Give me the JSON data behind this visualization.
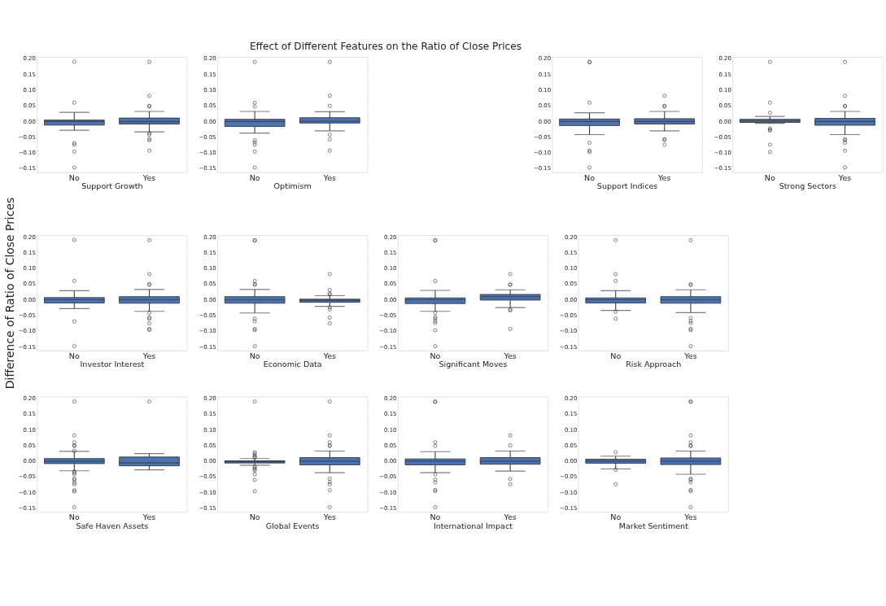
{
  "chart_data": [
    {
      "type": "box",
      "categories": [
        "No",
        "Yes"
      ],
      "xlabel": "Support Growth",
      "ylim": [
        -0.162,
        0.206
      ],
      "yticks": [
        {
          "value": -0.15,
          "label": "−0.15"
        },
        {
          "value": -0.1,
          "label": "−0.10"
        },
        {
          "value": -0.05,
          "label": "−0.05"
        },
        {
          "value": 0,
          "label": "0.00"
        },
        {
          "value": 0.05,
          "label": "0.05"
        },
        {
          "value": 0.1,
          "label": "0.10"
        },
        {
          "value": 0.15,
          "label": "0.15"
        },
        {
          "value": 0.2,
          "label": "0.20"
        }
      ],
      "grid": "y",
      "series": [
        {
          "color": "#4c72b0",
          "boxes": [
            {
              "low": -0.028,
              "q1": -0.0115,
              "median": 0.0,
              "q3": 0.0045,
              "high": 0.029,
              "outliers": [
                0.191,
                0.06,
                -0.069,
                -0.074,
                -0.096,
                -0.147
              ]
            },
            {
              "low": -0.033,
              "q1": -0.008,
              "median": 0.0,
              "q3": 0.011,
              "high": 0.032,
              "outliers": [
                0.19,
                0.082,
                0.05,
                0.048,
                -0.037,
                -0.042,
                -0.056,
                -0.06,
                -0.093
              ]
            }
          ]
        }
      ]
    },
    {
      "type": "box",
      "title": "Effect of Different Features on the Ratio of Close Prices",
      "categories": [
        "No",
        "Yes"
      ],
      "xlabel": "Optimism",
      "ylim": [
        -0.162,
        0.206
      ],
      "yticks": [
        {
          "value": -0.15,
          "label": "−0.15"
        },
        {
          "value": -0.1,
          "label": "−0.10"
        },
        {
          "value": -0.05,
          "label": "−0.05"
        },
        {
          "value": 0,
          "label": "0.00"
        },
        {
          "value": 0.05,
          "label": "0.05"
        },
        {
          "value": 0.1,
          "label": "0.10"
        },
        {
          "value": 0.15,
          "label": "0.15"
        },
        {
          "value": 0.2,
          "label": "0.20"
        }
      ],
      "grid": "y",
      "series": [
        {
          "color": "#4c72b0",
          "boxes": [
            {
              "low": -0.037,
              "q1": -0.016,
              "median": 0.0,
              "q3": 0.007,
              "high": 0.032,
              "outliers": [
                0.19,
                0.06,
                0.048,
                -0.06,
                -0.067,
                -0.074,
                -0.096,
                -0.147
              ]
            },
            {
              "low": -0.03,
              "q1": -0.005,
              "median": 0.001,
              "q3": 0.012,
              "high": 0.031,
              "outliers": [
                0.19,
                0.082,
                0.05,
                -0.042,
                -0.057,
                -0.093
              ]
            }
          ]
        }
      ]
    },
    {
      "type": "box",
      "categories": [
        "No",
        "Yes"
      ],
      "xlabel": "Support Indices",
      "ylim": [
        -0.162,
        0.206
      ],
      "yticks": [
        {
          "value": -0.15,
          "label": "−0.15"
        },
        {
          "value": -0.1,
          "label": "−0.10"
        },
        {
          "value": -0.05,
          "label": "−0.05"
        },
        {
          "value": 0,
          "label": "0.00"
        },
        {
          "value": 0.05,
          "label": "0.05"
        },
        {
          "value": 0.1,
          "label": "0.10"
        },
        {
          "value": 0.15,
          "label": "0.15"
        },
        {
          "value": 0.2,
          "label": "0.20"
        }
      ],
      "grid": "y",
      "series": [
        {
          "color": "#4c72b0",
          "boxes": [
            {
              "low": -0.042,
              "q1": -0.013,
              "median": 0.0,
              "q3": 0.008,
              "high": 0.028,
              "outliers": [
                0.19,
                0.189,
                0.06,
                -0.068,
                -0.093,
                -0.097,
                -0.147
              ]
            },
            {
              "low": -0.03,
              "q1": -0.008,
              "median": 0.0,
              "q3": 0.009,
              "high": 0.032,
              "outliers": [
                0.082,
                0.05,
                0.048,
                -0.056,
                -0.059,
                -0.074
              ]
            }
          ]
        }
      ]
    },
    {
      "type": "box",
      "categories": [
        "No",
        "Yes"
      ],
      "xlabel": "Strong Sectors",
      "ylim": [
        -0.162,
        0.206
      ],
      "yticks": [
        {
          "value": -0.15,
          "label": "−0.15"
        },
        {
          "value": -0.1,
          "label": "−0.10"
        },
        {
          "value": -0.05,
          "label": "−0.05"
        },
        {
          "value": 0,
          "label": "0.00"
        },
        {
          "value": 0.05,
          "label": "0.05"
        },
        {
          "value": 0.1,
          "label": "0.10"
        },
        {
          "value": 0.15,
          "label": "0.15"
        },
        {
          "value": 0.2,
          "label": "0.20"
        }
      ],
      "grid": "y",
      "series": [
        {
          "color": "#4c72b0",
          "boxes": [
            {
              "low": -0.006,
              "q1": -0.003,
              "median": 0.002,
              "q3": 0.007,
              "high": 0.016,
              "outliers": [
                0.19,
                0.06,
                0.028,
                -0.022,
                -0.026,
                -0.029,
                -0.074,
                -0.097
              ]
            },
            {
              "low": -0.042,
              "q1": -0.012,
              "median": 0.0,
              "q3": 0.01,
              "high": 0.032,
              "outliers": [
                0.19,
                0.082,
                0.05,
                0.048,
                -0.056,
                -0.06,
                -0.068,
                -0.093,
                -0.147
              ]
            }
          ]
        }
      ]
    },
    {
      "type": "box",
      "ylabel": "Difference of Ratio of Close Prices",
      "categories": [
        "No",
        "Yes"
      ],
      "xlabel": "Investor Interest",
      "ylim": [
        -0.162,
        0.206
      ],
      "yticks": [
        {
          "value": -0.15,
          "label": "−0.15"
        },
        {
          "value": -0.1,
          "label": "−0.10"
        },
        {
          "value": -0.05,
          "label": "−0.05"
        },
        {
          "value": 0,
          "label": "0.00"
        },
        {
          "value": 0.05,
          "label": "0.05"
        },
        {
          "value": 0.1,
          "label": "0.10"
        },
        {
          "value": 0.15,
          "label": "0.15"
        },
        {
          "value": 0.2,
          "label": "0.20"
        }
      ],
      "grid": "y",
      "series": [
        {
          "color": "#4c72b0",
          "boxes": [
            {
              "low": -0.028,
              "q1": -0.01,
              "median": 0.0,
              "q3": 0.007,
              "high": 0.029,
              "outliers": [
                0.191,
                0.06,
                -0.069,
                -0.148
              ]
            },
            {
              "low": -0.037,
              "q1": -0.011,
              "median": 0.0,
              "q3": 0.01,
              "high": 0.033,
              "outliers": [
                0.19,
                0.082,
                0.05,
                0.048,
                -0.042,
                -0.057,
                -0.06,
                -0.075,
                -0.093,
                -0.096
              ]
            }
          ]
        }
      ]
    },
    {
      "type": "box",
      "categories": [
        "No",
        "Yes"
      ],
      "xlabel": "Economic Data",
      "ylim": [
        -0.162,
        0.206
      ],
      "yticks": [
        {
          "value": -0.15,
          "label": "−0.15"
        },
        {
          "value": -0.1,
          "label": "−0.10"
        },
        {
          "value": -0.05,
          "label": "−0.05"
        },
        {
          "value": 0,
          "label": "0.00"
        },
        {
          "value": 0.05,
          "label": "0.05"
        },
        {
          "value": 0.1,
          "label": "0.10"
        },
        {
          "value": 0.15,
          "label": "0.15"
        },
        {
          "value": 0.2,
          "label": "0.20"
        }
      ],
      "grid": "y",
      "series": [
        {
          "color": "#4c72b0",
          "boxes": [
            {
              "low": -0.042,
              "q1": -0.011,
              "median": 0.0,
              "q3": 0.01,
              "high": 0.033,
              "outliers": [
                0.19,
                0.189,
                0.06,
                0.05,
                0.048,
                -0.06,
                -0.069,
                -0.093,
                -0.097,
                -0.148
              ]
            },
            {
              "low": -0.021,
              "q1": -0.008,
              "median": -0.002,
              "q3": 0.002,
              "high": 0.013,
              "outliers": [
                0.082,
                0.031,
                0.02,
                0.017,
                -0.024,
                -0.031,
                -0.057,
                -0.075
              ]
            }
          ]
        }
      ]
    },
    {
      "type": "box",
      "categories": [
        "No",
        "Yes"
      ],
      "xlabel": "Significant Moves",
      "ylim": [
        -0.162,
        0.206
      ],
      "yticks": [
        {
          "value": -0.15,
          "label": "−0.15"
        },
        {
          "value": -0.1,
          "label": "−0.10"
        },
        {
          "value": -0.05,
          "label": "−0.05"
        },
        {
          "value": 0,
          "label": "0.00"
        },
        {
          "value": 0.05,
          "label": "0.05"
        },
        {
          "value": 0.1,
          "label": "0.10"
        },
        {
          "value": 0.15,
          "label": "0.15"
        },
        {
          "value": 0.2,
          "label": "0.20"
        }
      ],
      "grid": "y",
      "series": [
        {
          "color": "#4c72b0",
          "boxes": [
            {
              "low": -0.037,
              "q1": -0.012,
              "median": 0.0,
              "q3": 0.006,
              "high": 0.03,
              "outliers": [
                0.19,
                0.189,
                0.06,
                -0.042,
                -0.055,
                -0.06,
                -0.068,
                -0.074,
                -0.097,
                -0.148
              ]
            },
            {
              "low": -0.025,
              "q1": -0.001,
              "median": 0.01,
              "q3": 0.017,
              "high": 0.032,
              "outliers": [
                0.082,
                0.049,
                0.048,
                -0.031,
                -0.034,
                -0.093
              ]
            }
          ]
        }
      ]
    },
    {
      "type": "box",
      "categories": [
        "No",
        "Yes"
      ],
      "xlabel": "Risk Approach",
      "ylim": [
        -0.162,
        0.206
      ],
      "yticks": [
        {
          "value": -0.15,
          "label": "−0.15"
        },
        {
          "value": -0.1,
          "label": "−0.10"
        },
        {
          "value": -0.05,
          "label": "−0.05"
        },
        {
          "value": 0,
          "label": "0.00"
        },
        {
          "value": 0.05,
          "label": "0.05"
        },
        {
          "value": 0.1,
          "label": "0.10"
        },
        {
          "value": 0.15,
          "label": "0.15"
        },
        {
          "value": 0.2,
          "label": "0.20"
        }
      ],
      "grid": "y",
      "series": [
        {
          "color": "#4c72b0",
          "boxes": [
            {
              "low": -0.034,
              "q1": -0.01,
              "median": 0.0,
              "q3": 0.006,
              "high": 0.029,
              "outliers": [
                0.19,
                0.082,
                0.06,
                -0.038,
                -0.06
              ]
            },
            {
              "low": -0.041,
              "q1": -0.011,
              "median": 0.0,
              "q3": 0.01,
              "high": 0.032,
              "outliers": [
                0.19,
                0.049,
                0.048,
                -0.058,
                -0.068,
                -0.074,
                -0.093,
                -0.097,
                -0.148
              ]
            }
          ]
        }
      ]
    },
    {
      "type": "box",
      "categories": [
        "No",
        "Yes"
      ],
      "xlabel": "Safe Haven Assets",
      "ylim": [
        -0.162,
        0.206
      ],
      "yticks": [
        {
          "value": -0.15,
          "label": "−0.15"
        },
        {
          "value": -0.1,
          "label": "−0.10"
        },
        {
          "value": -0.05,
          "label": "−0.05"
        },
        {
          "value": 0,
          "label": "0.00"
        },
        {
          "value": 0.05,
          "label": "0.05"
        },
        {
          "value": 0.1,
          "label": "0.10"
        },
        {
          "value": 0.15,
          "label": "0.15"
        },
        {
          "value": 0.2,
          "label": "0.20"
        }
      ],
      "grid": "y",
      "series": [
        {
          "color": "#4c72b0",
          "boxes": [
            {
              "low": -0.031,
              "q1": -0.008,
              "median": 0.0,
              "q3": 0.008,
              "high": 0.031,
              "outliers": [
                0.19,
                0.082,
                0.06,
                0.05,
                0.048,
                0.033,
                -0.033,
                -0.037,
                -0.042,
                -0.056,
                -0.06,
                -0.069,
                -0.074,
                -0.093,
                -0.097,
                -0.147
              ]
            },
            {
              "low": -0.028,
              "q1": -0.015,
              "median": -0.006,
              "q3": 0.013,
              "high": 0.024,
              "outliers": [
                0.19
              ]
            }
          ]
        }
      ]
    },
    {
      "type": "box",
      "categories": [
        "No",
        "Yes"
      ],
      "xlabel": "Global Events",
      "ylim": [
        -0.162,
        0.206
      ],
      "yticks": [
        {
          "value": -0.15,
          "label": "−0.15"
        },
        {
          "value": -0.1,
          "label": "−0.10"
        },
        {
          "value": -0.05,
          "label": "−0.05"
        },
        {
          "value": 0,
          "label": "0.00"
        },
        {
          "value": 0.05,
          "label": "0.05"
        },
        {
          "value": 0.1,
          "label": "0.10"
        },
        {
          "value": 0.15,
          "label": "0.15"
        },
        {
          "value": 0.2,
          "label": "0.20"
        }
      ],
      "grid": "y",
      "series": [
        {
          "color": "#4c72b0",
          "boxes": [
            {
              "low": -0.013,
              "q1": -0.006,
              "median": -0.002,
              "q3": 0.001,
              "high": 0.008,
              "outliers": [
                0.19,
                0.028,
                0.024,
                0.018,
                0.014,
                0.011,
                -0.017,
                -0.021,
                -0.026,
                -0.03,
                -0.042,
                -0.06,
                -0.096
              ]
            },
            {
              "low": -0.037,
              "q1": -0.012,
              "median": 0.0,
              "q3": 0.011,
              "high": 0.032,
              "outliers": [
                0.19,
                0.082,
                0.06,
                0.05,
                0.048,
                -0.056,
                -0.067,
                -0.074,
                -0.093,
                -0.147
              ]
            }
          ]
        }
      ]
    },
    {
      "type": "box",
      "categories": [
        "No",
        "Yes"
      ],
      "xlabel": "International Impact",
      "ylim": [
        -0.162,
        0.206
      ],
      "yticks": [
        {
          "value": -0.15,
          "label": "−0.15"
        },
        {
          "value": -0.1,
          "label": "−0.10"
        },
        {
          "value": -0.05,
          "label": "−0.05"
        },
        {
          "value": 0,
          "label": "0.00"
        },
        {
          "value": 0.05,
          "label": "0.05"
        },
        {
          "value": 0.1,
          "label": "0.10"
        },
        {
          "value": 0.15,
          "label": "0.15"
        },
        {
          "value": 0.2,
          "label": "0.20"
        }
      ],
      "grid": "y",
      "series": [
        {
          "color": "#4c72b0",
          "boxes": [
            {
              "low": -0.037,
              "q1": -0.012,
              "median": 0.0,
              "q3": 0.007,
              "high": 0.03,
              "outliers": [
                0.19,
                0.189,
                0.06,
                0.048,
                -0.042,
                -0.059,
                -0.068,
                -0.092,
                -0.096,
                -0.147
              ]
            },
            {
              "low": -0.032,
              "q1": -0.01,
              "median": 0.0,
              "q3": 0.011,
              "high": 0.032,
              "outliers": [
                0.082,
                0.05,
                -0.057,
                -0.074
              ]
            }
          ]
        }
      ]
    },
    {
      "type": "box",
      "categories": [
        "No",
        "Yes"
      ],
      "xlabel": "Market Sentiment",
      "ylim": [
        -0.162,
        0.206
      ],
      "yticks": [
        {
          "value": -0.15,
          "label": "−0.15"
        },
        {
          "value": -0.1,
          "label": "−0.10"
        },
        {
          "value": -0.05,
          "label": "−0.05"
        },
        {
          "value": 0,
          "label": "0.00"
        },
        {
          "value": 0.05,
          "label": "0.05"
        },
        {
          "value": 0.1,
          "label": "0.10"
        },
        {
          "value": 0.15,
          "label": "0.15"
        },
        {
          "value": 0.2,
          "label": "0.20"
        }
      ],
      "grid": "y",
      "series": [
        {
          "color": "#4c72b0",
          "boxes": [
            {
              "low": -0.025,
              "q1": -0.007,
              "median": 0.0,
              "q3": 0.006,
              "high": 0.016,
              "outliers": [
                0.028,
                -0.028,
                -0.074
              ]
            },
            {
              "low": -0.042,
              "q1": -0.011,
              "median": 0.0,
              "q3": 0.01,
              "high": 0.032,
              "outliers": [
                0.19,
                0.189,
                0.082,
                0.06,
                0.05,
                0.048,
                -0.056,
                -0.06,
                -0.068,
                -0.092,
                -0.096,
                -0.147
              ]
            }
          ]
        }
      ]
    }
  ]
}
